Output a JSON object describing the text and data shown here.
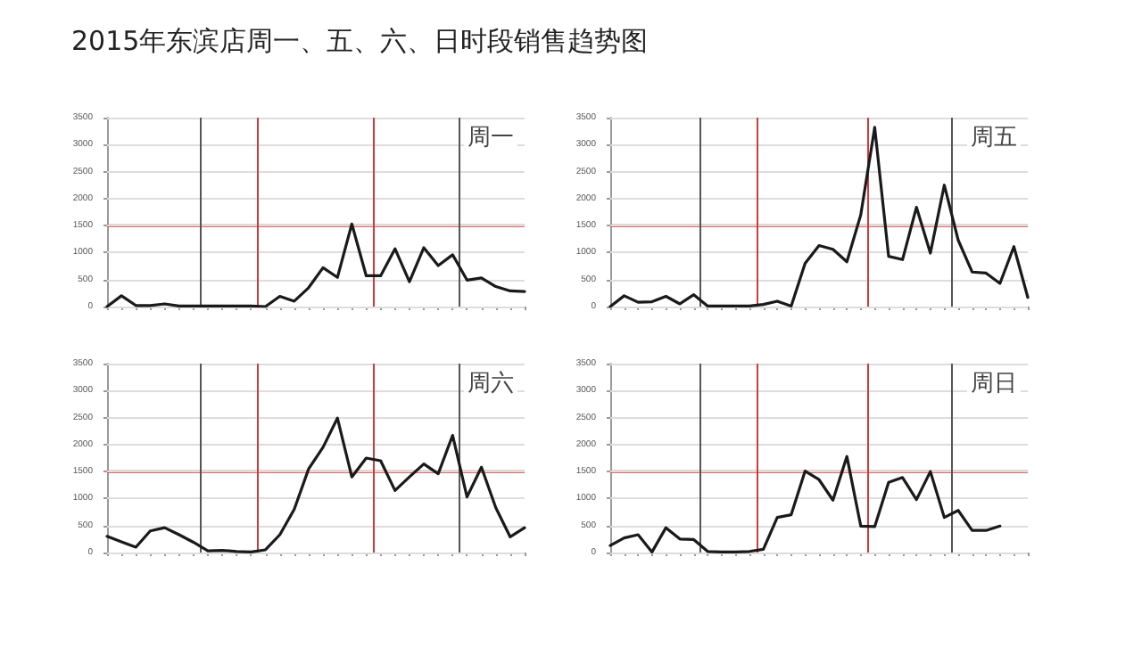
{
  "chart_data": [
    {
      "type": "line",
      "title": "周一",
      "annotations": [
        "2015年东滨店周一、五、六、日时段销售趋势图"
      ],
      "categories": [
        null,
        null,
        null,
        null,
        null,
        null,
        null,
        null,
        null,
        null,
        null,
        null,
        null,
        null,
        null,
        null,
        null,
        null,
        null,
        null,
        null,
        null,
        null,
        null,
        null,
        null,
        null,
        null,
        null,
        null
      ],
      "series": [
        {
          "color": "#1a1a1a",
          "values": [
            0,
            200,
            20,
            20,
            50,
            10,
            10,
            10,
            10,
            10,
            10,
            0,
            190,
            100,
            350,
            720,
            540,
            1530,
            570,
            570,
            1070,
            460,
            1090,
            760,
            960,
            490,
            530,
            370,
            290,
            280
          ]
        }
      ],
      "ylim": [
        0,
        3500
      ],
      "yticks": [
        0,
        500,
        1000,
        1500,
        2000,
        2500,
        3000,
        3500
      ],
      "grid": "y",
      "marker": "none",
      "line_style": "solid",
      "ref_lines": [
        {
          "axis": "y",
          "value": 1500,
          "color": "#d03a3a"
        }
      ]
    },
    {
      "type": "line",
      "title": "周五",
      "categories": [
        null,
        null,
        null,
        null,
        null,
        null,
        null,
        null,
        null,
        null,
        null,
        null,
        null,
        null,
        null,
        null,
        null,
        null,
        null,
        null,
        null,
        null,
        null,
        null,
        null,
        null,
        null,
        null,
        null,
        null,
        null
      ],
      "series": [
        {
          "color": "#1a1a1a",
          "values": [
            0,
            200,
            80,
            90,
            190,
            50,
            220,
            10,
            10,
            10,
            10,
            40,
            100,
            10,
            800,
            1130,
            1060,
            830,
            1700,
            3320,
            930,
            870,
            1840,
            990,
            2250,
            1230,
            640,
            620,
            430,
            1110,
            170
          ]
        }
      ],
      "ylim": [
        0,
        3500
      ],
      "yticks": [
        0,
        500,
        1000,
        1500,
        2000,
        2500,
        3000,
        3500
      ],
      "grid": "y",
      "marker": "none",
      "line_style": "solid",
      "ref_lines": [
        {
          "axis": "y",
          "value": 1500,
          "color": "#d03a3a"
        }
      ]
    },
    {
      "type": "line",
      "title": "周六",
      "categories": [
        null,
        null,
        null,
        null,
        null,
        null,
        null,
        null,
        null,
        null,
        null,
        null,
        null,
        null,
        null,
        null,
        null,
        null,
        null,
        null,
        null,
        null,
        null,
        null,
        null,
        null,
        null,
        null,
        null,
        null
      ],
      "series": [
        {
          "color": "#1a1a1a",
          "values": [
            300,
            200,
            100,
            400,
            460,
            330,
            190,
            30,
            40,
            20,
            10,
            50,
            330,
            800,
            1550,
            1950,
            2490,
            1400,
            1750,
            1700,
            1150,
            1400,
            1640,
            1460,
            2170,
            1030,
            1580,
            830,
            290,
            460
          ]
        }
      ],
      "ylim": [
        0,
        3500
      ],
      "yticks": [
        0,
        500,
        1000,
        1500,
        2000,
        2500,
        3000,
        3500
      ],
      "grid": "y",
      "marker": "none",
      "line_style": "solid",
      "ref_lines": [
        {
          "axis": "y",
          "value": 1500,
          "color": "#d03a3a"
        }
      ]
    },
    {
      "type": "line",
      "title": "周日",
      "categories": [
        null,
        null,
        null,
        null,
        null,
        null,
        null,
        null,
        null,
        null,
        null,
        null,
        null,
        null,
        null,
        null,
        null,
        null,
        null,
        null,
        null,
        null,
        null,
        null,
        null,
        null,
        null,
        null,
        null,
        null,
        null
      ],
      "series": [
        {
          "color": "#1a1a1a",
          "values": [
            130,
            270,
            330,
            10,
            460,
            250,
            240,
            20,
            10,
            10,
            20,
            60,
            650,
            700,
            1510,
            1350,
            970,
            1780,
            490,
            480,
            1300,
            1390,
            980,
            1500,
            650,
            780,
            410,
            410,
            490,
            null,
            null
          ]
        }
      ],
      "ylim": [
        0,
        3500
      ],
      "yticks": [
        0,
        500,
        1000,
        1500,
        2000,
        2500,
        3000,
        3500
      ],
      "grid": "y",
      "marker": "none",
      "line_style": "solid",
      "ref_lines": [
        {
          "axis": "y",
          "value": 1500,
          "color": "#d03a3a"
        }
      ]
    }
  ]
}
